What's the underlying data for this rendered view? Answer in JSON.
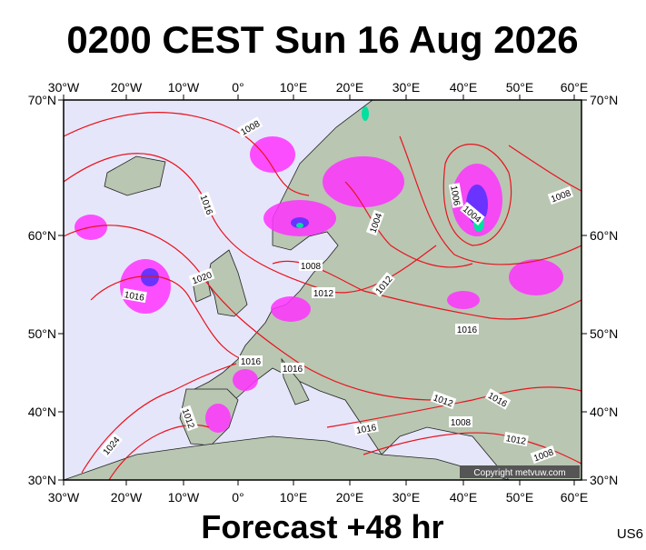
{
  "header": {
    "title": "0200 CEST Sun 16 Aug 2026"
  },
  "map": {
    "lon_labels": [
      "30°W",
      "20°W",
      "10°W",
      "0°",
      "10°E",
      "20°E",
      "30°E",
      "40°E",
      "50°E",
      "60°E"
    ],
    "lat_labels": [
      "70°N",
      "60°N",
      "50°N",
      "40°N",
      "30°N"
    ],
    "isobar_labels": [
      "1008",
      "1016",
      "1020",
      "1016",
      "1008",
      "1012",
      "1004",
      "1012",
      "1016",
      "1016",
      "1012",
      "1024",
      "1016",
      "1012",
      "1008",
      "1016",
      "1012",
      "1008",
      "1006",
      "1004",
      "1008",
      "1016"
    ],
    "copyright": "Copyright metvuw.com"
  },
  "footer": {
    "forecast": "Forecast +48 hr",
    "code": "US6"
  }
}
